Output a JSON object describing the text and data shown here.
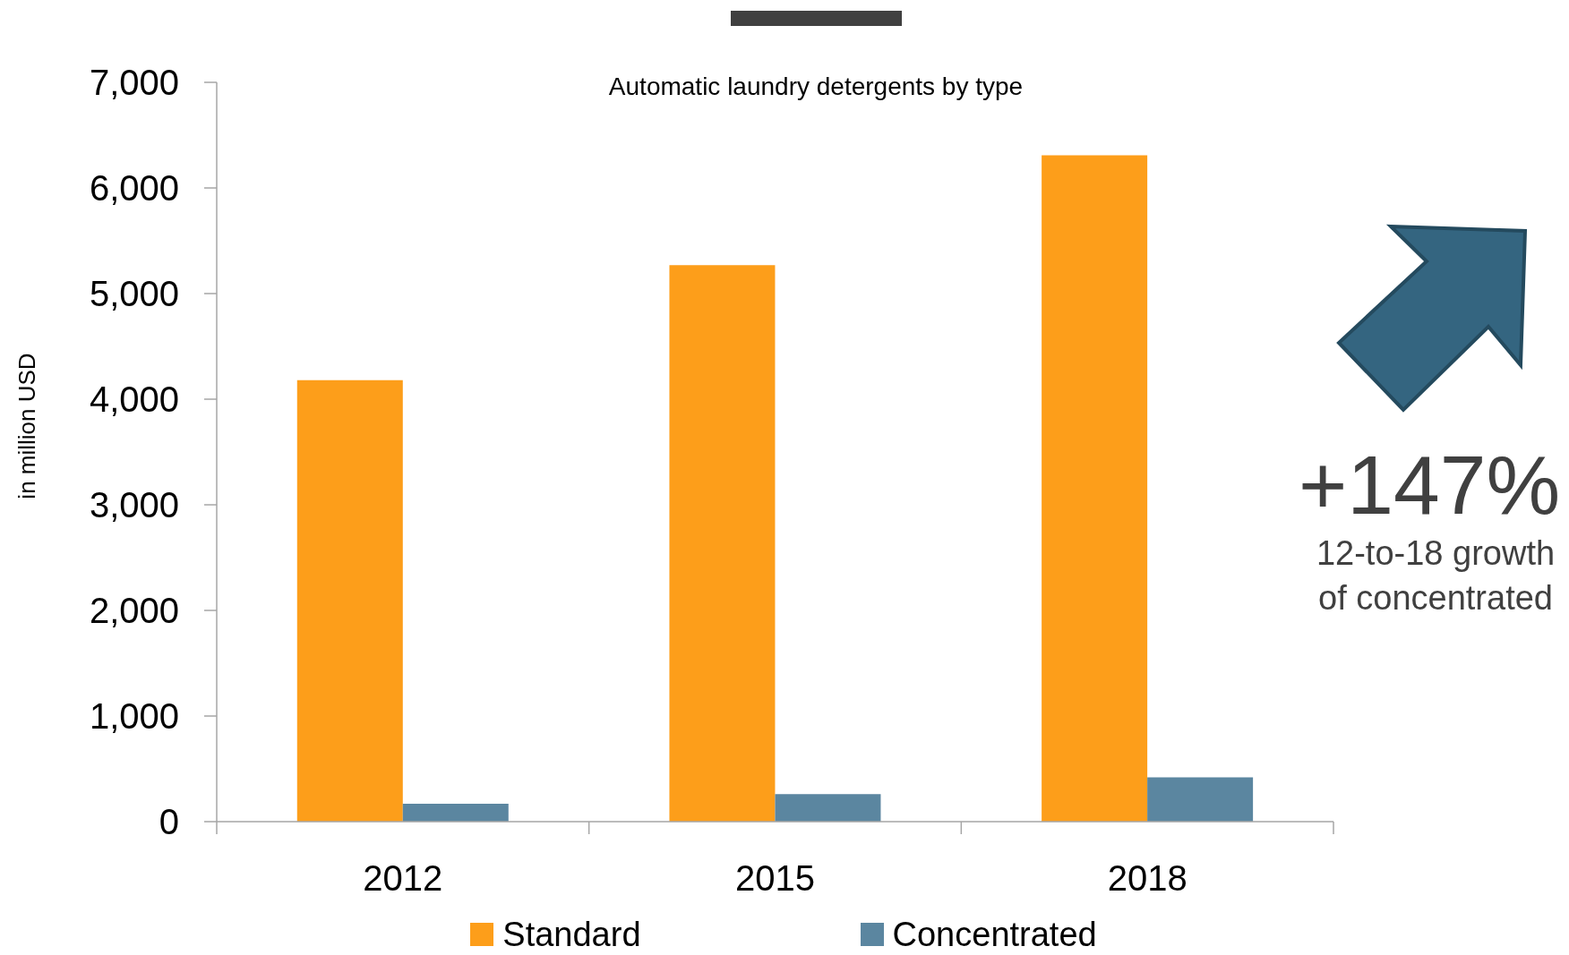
{
  "chart_data": {
    "type": "bar",
    "title": "Automatic laundry detergents by type",
    "ylabel": "in million USD",
    "categories": [
      "2012",
      "2015",
      "2018"
    ],
    "series": [
      {
        "name": "Standard",
        "color": "#fd9e1a",
        "values": [
          4180,
          5270,
          6310
        ]
      },
      {
        "name": "Concentrated",
        "color": "#5b86a0",
        "values": [
          170,
          260,
          420
        ]
      }
    ],
    "ylim": [
      0,
      7000
    ],
    "yticks": [
      {
        "value": 0,
        "label": "0"
      },
      {
        "value": 1000,
        "label": "1,000"
      },
      {
        "value": 2000,
        "label": "2,000"
      },
      {
        "value": 3000,
        "label": "3,000"
      },
      {
        "value": 4000,
        "label": "4,000"
      },
      {
        "value": 5000,
        "label": "5,000"
      },
      {
        "value": 6000,
        "label": "6,000"
      },
      {
        "value": 7000,
        "label": "7,000"
      }
    ],
    "legend": "bottom",
    "annotations": [
      "+147%",
      "12-to-18 growth of concentrated"
    ]
  }
}
